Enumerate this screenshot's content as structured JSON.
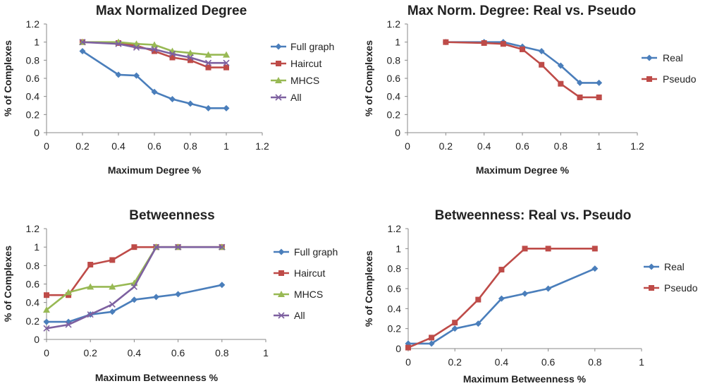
{
  "colors": {
    "blue": "#4a7ebb",
    "red": "#be4b48",
    "green": "#98b954",
    "purple": "#7d60a0"
  },
  "chart_data": [
    {
      "type": "line",
      "title": "Max Normalized Degree",
      "xlabel": "Maximum Degree %",
      "ylabel": "% of Complexes",
      "xlim": [
        0,
        1.2
      ],
      "ylim": [
        0,
        1.2
      ],
      "xticks": [
        0,
        0.2,
        0.4,
        0.6,
        0.8,
        1,
        1.2
      ],
      "yticks": [
        0,
        0.2,
        0.4,
        0.6,
        0.8,
        1,
        1.2
      ],
      "series": [
        {
          "name": "Full graph",
          "color": "#4a7ebb",
          "marker": "diamond",
          "x": [
            0.2,
            0.4,
            0.5,
            0.6,
            0.7,
            0.8,
            0.9,
            1.0
          ],
          "y": [
            0.9,
            0.64,
            0.63,
            0.45,
            0.37,
            0.32,
            0.27,
            0.27
          ]
        },
        {
          "name": "Haircut",
          "color": "#be4b48",
          "marker": "square",
          "x": [
            0.2,
            0.4,
            0.5,
            0.6,
            0.7,
            0.8,
            0.9,
            1.0
          ],
          "y": [
            1.0,
            0.99,
            0.96,
            0.9,
            0.83,
            0.8,
            0.72,
            0.72
          ]
        },
        {
          "name": "MHCS",
          "color": "#98b954",
          "marker": "triangle",
          "x": [
            0.2,
            0.4,
            0.5,
            0.6,
            0.7,
            0.8,
            0.9,
            1.0
          ],
          "y": [
            1.0,
            1.0,
            0.98,
            0.97,
            0.9,
            0.88,
            0.86,
            0.86
          ]
        },
        {
          "name": "All",
          "color": "#7d60a0",
          "marker": "x",
          "x": [
            0.2,
            0.4,
            0.5,
            0.6,
            0.7,
            0.8,
            0.9,
            1.0
          ],
          "y": [
            1.0,
            0.98,
            0.94,
            0.92,
            0.87,
            0.83,
            0.77,
            0.77
          ]
        }
      ]
    },
    {
      "type": "line",
      "title": "Max Norm. Degree: Real vs. Pseudo",
      "xlabel": "Maximum Degree %",
      "ylabel": "% of Complexes",
      "xlim": [
        0,
        1.2
      ],
      "ylim": [
        0,
        1.2
      ],
      "xticks": [
        0,
        0.2,
        0.4,
        0.6,
        0.8,
        1,
        1.2
      ],
      "yticks": [
        0,
        0.2,
        0.4,
        0.6,
        0.8,
        1,
        1.2
      ],
      "series": [
        {
          "name": "Real",
          "color": "#4a7ebb",
          "marker": "diamond",
          "x": [
            0.2,
            0.4,
            0.5,
            0.6,
            0.7,
            0.8,
            0.9,
            1.0
          ],
          "y": [
            1.0,
            1.0,
            1.0,
            0.95,
            0.9,
            0.74,
            0.55,
            0.55
          ]
        },
        {
          "name": "Pseudo",
          "color": "#be4b48",
          "marker": "square",
          "x": [
            0.2,
            0.4,
            0.5,
            0.6,
            0.7,
            0.8,
            0.9,
            1.0
          ],
          "y": [
            1.0,
            0.99,
            0.98,
            0.92,
            0.75,
            0.54,
            0.39,
            0.39
          ]
        }
      ]
    },
    {
      "type": "line",
      "title": "Betweenness",
      "xlabel": "Maximum Betweenness %",
      "ylabel": "% of Complexes",
      "xlim": [
        0,
        1
      ],
      "ylim": [
        0,
        1.2
      ],
      "xticks": [
        0,
        0.2,
        0.4,
        0.6,
        0.8,
        1
      ],
      "yticks": [
        0,
        0.2,
        0.4,
        0.6,
        0.8,
        1,
        1.2
      ],
      "series": [
        {
          "name": "Full graph",
          "color": "#4a7ebb",
          "marker": "diamond",
          "x": [
            0,
            0.1,
            0.2,
            0.3,
            0.4,
            0.5,
            0.6,
            0.8
          ],
          "y": [
            0.19,
            0.19,
            0.27,
            0.3,
            0.43,
            0.46,
            0.49,
            0.59
          ]
        },
        {
          "name": "Haircut",
          "color": "#be4b48",
          "marker": "square",
          "x": [
            0,
            0.1,
            0.2,
            0.3,
            0.4,
            0.5,
            0.6,
            0.8
          ],
          "y": [
            0.48,
            0.48,
            0.81,
            0.86,
            1.0,
            1.0,
            1.0,
            1.0
          ]
        },
        {
          "name": "MHCS",
          "color": "#98b954",
          "marker": "triangle",
          "x": [
            0,
            0.1,
            0.2,
            0.3,
            0.4,
            0.5,
            0.6,
            0.8
          ],
          "y": [
            0.32,
            0.51,
            0.57,
            0.57,
            0.61,
            1.0,
            1.0,
            1.0
          ]
        },
        {
          "name": "All",
          "color": "#7d60a0",
          "marker": "x",
          "x": [
            0,
            0.1,
            0.2,
            0.3,
            0.4,
            0.5,
            0.6,
            0.8
          ],
          "y": [
            0.12,
            0.16,
            0.27,
            0.38,
            0.57,
            1.0,
            1.0,
            1.0
          ]
        }
      ]
    },
    {
      "type": "line",
      "title": "Betweenness: Real vs. Pseudo",
      "xlabel": "Maximum Betweenness %",
      "ylabel": "% of Complexes",
      "xlim": [
        0,
        1
      ],
      "ylim": [
        0,
        1.2
      ],
      "xticks": [
        0,
        0.2,
        0.4,
        0.6,
        0.8,
        1
      ],
      "yticks": [
        0,
        0.2,
        0.4,
        0.6,
        0.8,
        1,
        1.2
      ],
      "series": [
        {
          "name": "Real",
          "color": "#4a7ebb",
          "marker": "diamond",
          "x": [
            0,
            0.1,
            0.2,
            0.3,
            0.4,
            0.5,
            0.6,
            0.8
          ],
          "y": [
            0.05,
            0.05,
            0.2,
            0.25,
            0.5,
            0.55,
            0.6,
            0.8
          ]
        },
        {
          "name": "Pseudo",
          "color": "#be4b48",
          "marker": "square",
          "x": [
            0,
            0.1,
            0.2,
            0.3,
            0.4,
            0.5,
            0.6,
            0.8
          ],
          "y": [
            0.01,
            0.11,
            0.26,
            0.49,
            0.79,
            1.0,
            1.0,
            1.0
          ]
        }
      ]
    }
  ]
}
